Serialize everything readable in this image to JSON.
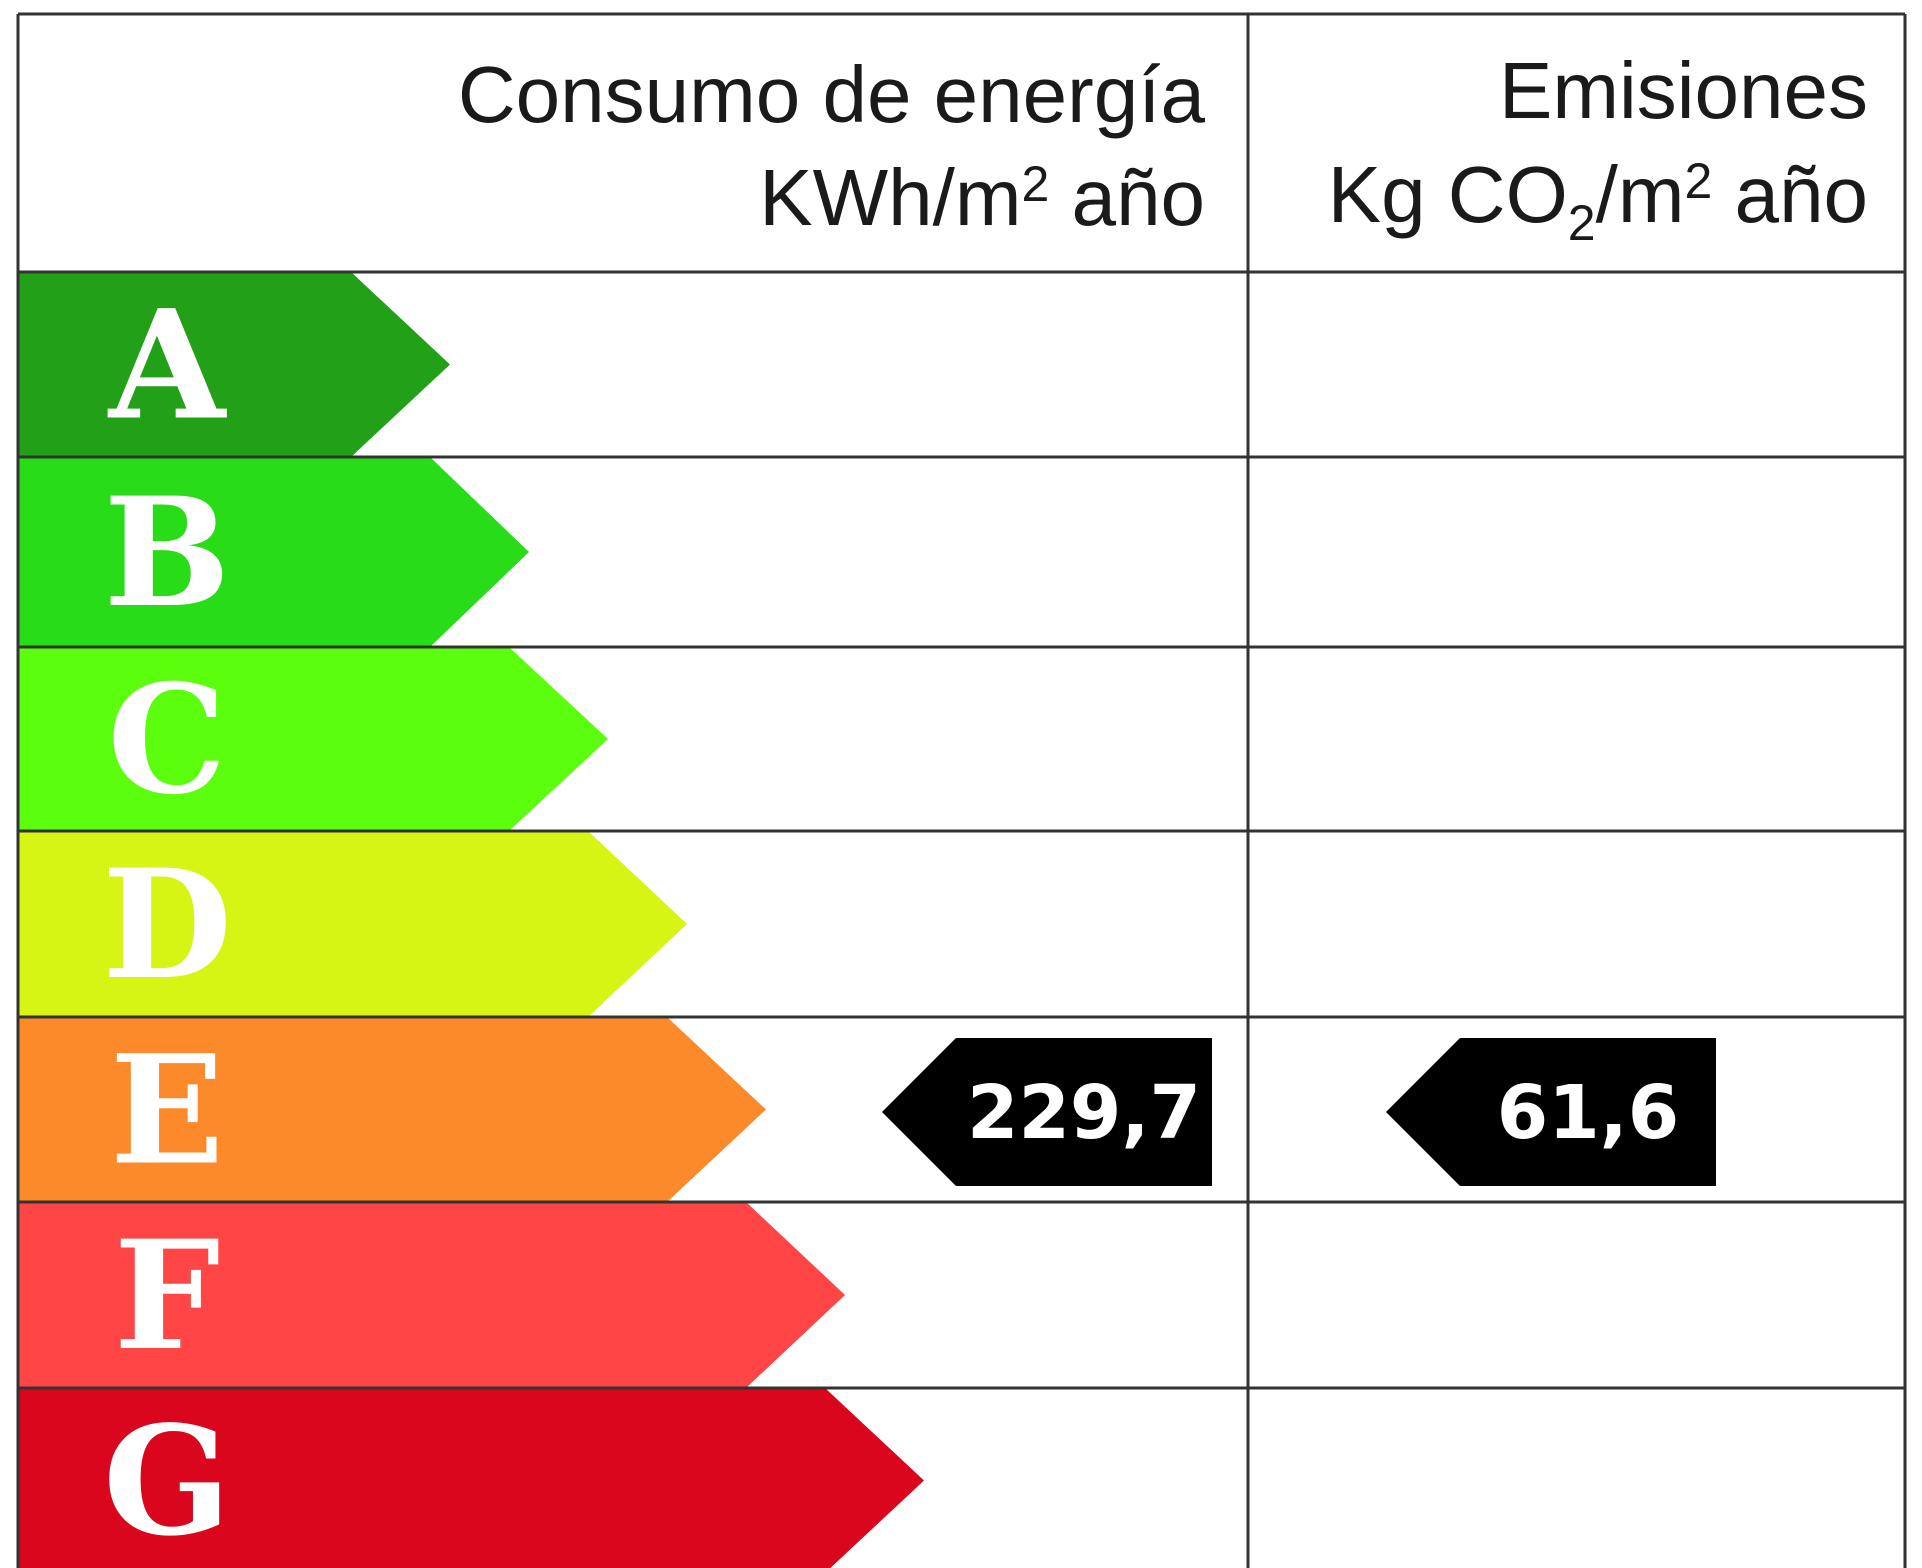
{
  "header": {
    "energy": {
      "title": "Consumo de energía",
      "unit_prefix": "KWh/m",
      "unit_sup": "2",
      "unit_suffix": " año"
    },
    "emissions": {
      "title": "Emisiones",
      "unit_prefix": "Kg CO",
      "unit_sub": "2",
      "unit_mid": "/m",
      "unit_sup": "2",
      "unit_suffix": " año"
    }
  },
  "classes": [
    {
      "letter": "A",
      "color": "#22a017"
    },
    {
      "letter": "B",
      "color": "#28dc18"
    },
    {
      "letter": "C",
      "color": "#5bff0d"
    },
    {
      "letter": "D",
      "color": "#d6f514"
    },
    {
      "letter": "E",
      "color": "#fd8a2a"
    },
    {
      "letter": "F",
      "color": "#ff4545"
    },
    {
      "letter": "G",
      "color": "#d9061e"
    }
  ],
  "ratings": {
    "energy": {
      "class": "E",
      "value": "229,7"
    },
    "emissions": {
      "class": "E",
      "value": "61,6"
    }
  },
  "colors": {
    "border": "#333333",
    "marker": "#000000"
  }
}
